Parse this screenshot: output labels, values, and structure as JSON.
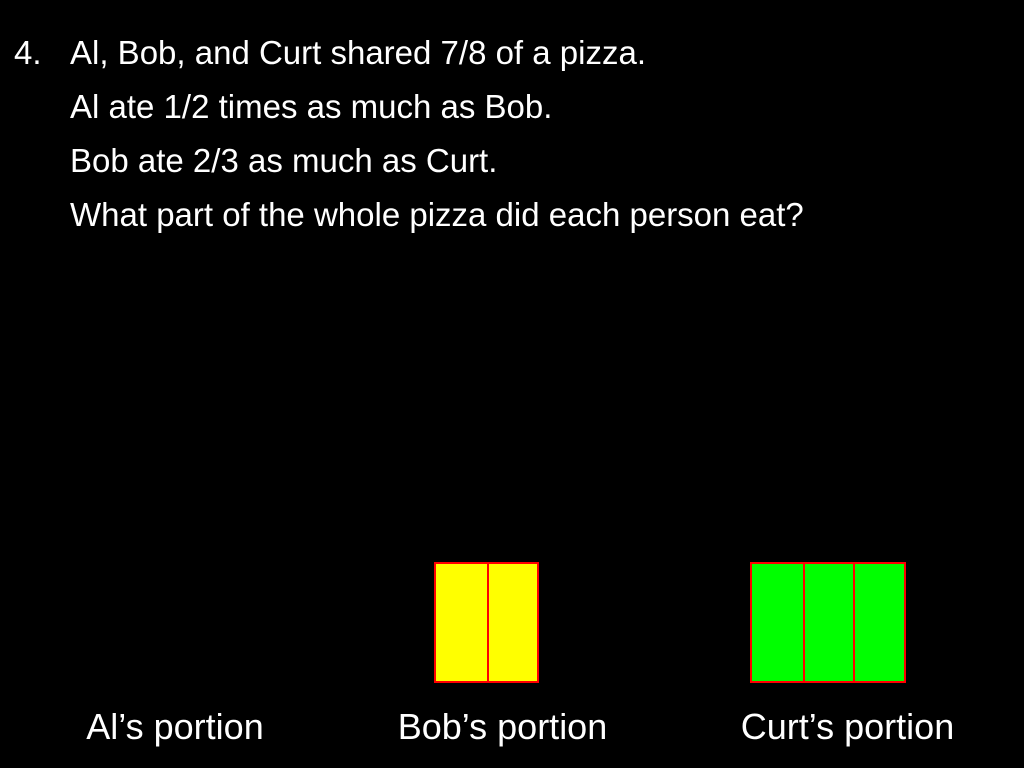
{
  "problem": {
    "number": "4.",
    "lines": [
      "Al, Bob, and Curt shared 7/8 of a pizza.",
      "Al ate 1/2 times as much as Bob.",
      "Bob ate 2/3 as much as Curt.",
      "What part of the whole pizza did each person eat?"
    ]
  },
  "portions": [
    {
      "label": "Al’s portion",
      "units": 0,
      "fill": "#ffff00"
    },
    {
      "label": "Bob’s portion",
      "units": 2,
      "fill": "#ffff00"
    },
    {
      "label": "Curt’s portion",
      "units": 3,
      "fill": "#00ff00"
    }
  ],
  "colors": {
    "background": "#000000",
    "text": "#ffffff",
    "unit_border": "#ff0000",
    "bob_fill": "#ffff00",
    "curt_fill": "#00ff00"
  }
}
